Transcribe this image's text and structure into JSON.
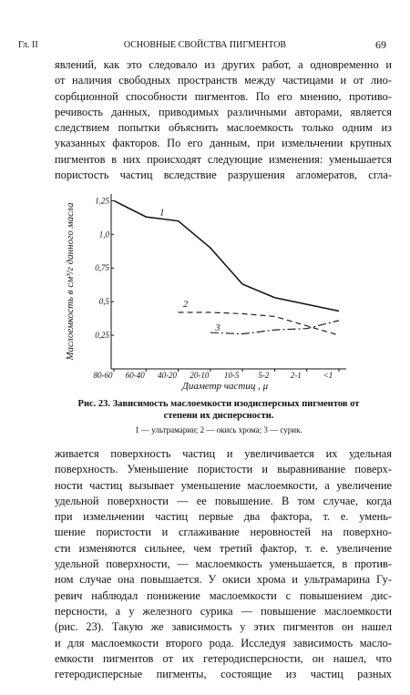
{
  "header": {
    "left": "Гл. II",
    "title": "ОСНОВНЫЕ СВОЙСТВА ПИГМЕНТОВ",
    "page": "69"
  },
  "paragraph1": [
    "явлений, как это следовало из других работ, а одновременно и",
    "от наличия свободных пространств между частицами и от лио-",
    "сорбционной способности пигментов. По его мнению, противо-",
    "речивость данных, приводимых различными авторами, является",
    "следствием попытки объяснить маслоемкость только одним из",
    "указанных факторов. По его данным, при измельчении крупных",
    "пигментов в них происходят следующие изменения: уменьшается",
    "пористость частиц вследствие разрушения агломератов, сгла-"
  ],
  "chart_data": {
    "type": "line",
    "y_label": "Маслоемкость в см³/г данного масла",
    "x_label": "Диаметр частиц , μ",
    "categories": [
      "80-60",
      "60-40",
      "40-20",
      "20-10",
      "10-5",
      "5-2",
      "2-1",
      "<1"
    ],
    "ylim": [
      0,
      1.3
    ],
    "yticks": [
      {
        "value": 0.25,
        "label": "0,25"
      },
      {
        "value": 0.5,
        "label": "0,5"
      },
      {
        "value": 0.75,
        "label": "0,75"
      },
      {
        "value": 1.0,
        "label": "1,0"
      },
      {
        "value": 1.25,
        "label": "1,25"
      }
    ],
    "series": [
      {
        "name": "1",
        "color": "#111",
        "values": [
          1.25,
          1.13,
          1.1,
          0.9,
          0.63,
          0.53,
          0.48,
          0.43
        ]
      },
      {
        "name": "2",
        "color": "#111",
        "values": [
          null,
          null,
          0.42,
          0.42,
          0.41,
          0.39,
          0.32,
          0.25
        ]
      },
      {
        "name": "3",
        "color": "#111",
        "values": [
          null,
          null,
          null,
          0.27,
          0.26,
          0.29,
          0.3,
          0.36
        ]
      }
    ]
  },
  "caption": "Рис. 23. Зависимость маслоемкости изодисперсных пигментов от степени их дисперсности.",
  "legend_note": "1 — ультрамарин; 2 — окись хрома; 3 — сурик.",
  "paragraph2": [
    "живается поверхность частиц и увеличивается их удельная",
    "поверхность. Уменьшение пористости и выравнивание поверх-",
    "ности частиц вызывает уменьшение маслоемкости, а увеличение",
    "удельной поверхности — ее повышение. В том случае, когда",
    "при измельчении частиц первые два фактора, т. е. умень-",
    "шение пористости и сглаживание неровностей на поверхно-",
    "сти изменяются сильнее, чем третий фактор, т. е. увеличение",
    "удельной поверхности, — маслоемкость уменьшается, в против-",
    "ном случае она повышается. У окиси хрома и ультрамарина Гу-",
    "ревич наблюдал понижение маслоемкости с повышением дис-",
    "персности, а у железного сурика — повышение маслоемкости",
    "(рис. 23). Такую же зависимость у этих пигментов он нашел",
    "и для маслоемкости второго рода. Исследуя зависимость масло-",
    "емкости пигментов от их гетеродисперсности, он нашел, что",
    "гетеродисперсные пигменты, состоящие из частиц разных"
  ]
}
